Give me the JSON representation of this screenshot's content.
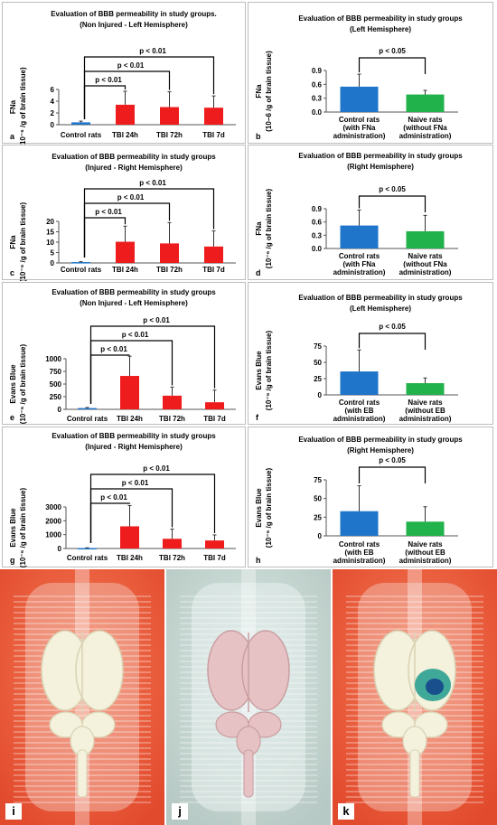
{
  "colors": {
    "red": "#ee1c1c",
    "blue": "#1f75c9",
    "green": "#22b24c",
    "border": "#bdbdbd"
  },
  "panels": [
    {
      "id": "a",
      "label": "a",
      "chart_data": {
        "type": "bar",
        "title": [
          "Evaluation of BBB permeability in study groups.",
          "(Non Injured - Left Hemisphere)"
        ],
        "ylabel": [
          "FNa",
          "(10⁻⁶ /g of brain tissue)"
        ],
        "ylim": [
          0,
          6
        ],
        "yticks": [
          "0",
          "2",
          "4",
          "6"
        ],
        "categories": [
          "Control rats",
          "TBI  24h",
          "TBI 72h",
          "TBI 7d"
        ],
        "values": [
          0.4,
          3.4,
          3.0,
          2.9
        ],
        "errors": [
          0.2,
          2.3,
          2.6,
          2.0
        ],
        "bar_colors": [
          "blue",
          "red",
          "red",
          "red"
        ],
        "annotations": [
          {
            "text": "p < 0.01",
            "to": 1
          },
          {
            "text": "p < 0.01",
            "to": 2
          },
          {
            "text": "p < 0.01",
            "to": 3
          }
        ]
      }
    },
    {
      "id": "b",
      "label": "b",
      "chart_data": {
        "type": "bar",
        "title": [
          "Evaluation of BBB permeability in study groups",
          "(Left Hemisphere)"
        ],
        "ylabel": [
          "FNa",
          "(10−6 /g of brain tissue)"
        ],
        "ylim": [
          0,
          0.9
        ],
        "yticks": [
          "0.0",
          "0.3",
          "0.6",
          "0.9"
        ],
        "categories": [
          [
            "Control rats",
            "(with  FNa",
            "administration)"
          ],
          [
            "Naive rats",
            "(without  FNa",
            "administration)"
          ]
        ],
        "values": [
          0.55,
          0.38
        ],
        "errors": [
          0.27,
          0.09
        ],
        "bar_colors": [
          "blue",
          "green"
        ],
        "annotations": [
          {
            "text": "p < 0.05"
          }
        ]
      }
    },
    {
      "id": "c",
      "label": "c",
      "chart_data": {
        "type": "bar",
        "title": [
          "Evaluation of BBB permeability in study groups",
          "(Injured - Right Hemisphere)"
        ],
        "ylabel": [
          "FNa",
          "(10⁻⁶ /g of brain tissue)"
        ],
        "ylim": [
          0,
          20
        ],
        "yticks": [
          "0",
          "5",
          "10",
          "15",
          "20"
        ],
        "categories": [
          "Control rats",
          "TBI  24h",
          "TBI 72h",
          "TBI 7d"
        ],
        "values": [
          0.4,
          10.2,
          9.4,
          7.9
        ],
        "errors": [
          0.2,
          7.5,
          10.0,
          7.5
        ],
        "bar_colors": [
          "blue",
          "red",
          "red",
          "red"
        ],
        "annotations": [
          {
            "text": "p < 0.01",
            "to": 1
          },
          {
            "text": "p < 0.01",
            "to": 2
          },
          {
            "text": "p < 0.01",
            "to": 3
          }
        ]
      }
    },
    {
      "id": "d",
      "label": "d",
      "chart_data": {
        "type": "bar",
        "title": [
          "Evaluation of BBB permeability in study groups",
          "(Right Hemisphere)"
        ],
        "ylabel": [
          "FNa",
          "(10⁻⁶ /g of brain tissue)"
        ],
        "ylim": [
          0,
          0.9
        ],
        "yticks": [
          "0.0",
          "0.3",
          "0.6",
          "0.9"
        ],
        "categories": [
          [
            "Control rats",
            "(with  FNa",
            "administration)"
          ],
          [
            "Naive rats",
            "(without  FNa",
            "administration)"
          ]
        ],
        "values": [
          0.52,
          0.39
        ],
        "errors": [
          0.35,
          0.36
        ],
        "bar_colors": [
          "blue",
          "green"
        ],
        "annotations": [
          {
            "text": "p < 0.05"
          }
        ]
      }
    },
    {
      "id": "e",
      "label": "e",
      "chart_data": {
        "type": "bar",
        "title": [
          "Evaluation of BBB permeability in study groups",
          "(Non Injured - Left Hemisphere)"
        ],
        "ylabel": [
          "Evans Blue",
          "(10⁻⁶ /g of brain tissue)"
        ],
        "ylim": [
          0,
          1000
        ],
        "yticks": [
          "0",
          "250",
          "500",
          "750",
          "1000"
        ],
        "categories": [
          "Control rats",
          "TBI  24h",
          "TBI 72h",
          "TBI 7d"
        ],
        "values": [
          25,
          660,
          270,
          140
        ],
        "errors": [
          12,
          520,
          170,
          240
        ],
        "bar_colors": [
          "blue",
          "red",
          "red",
          "red"
        ],
        "annotations": [
          {
            "text": "p < 0.01",
            "to": 1
          },
          {
            "text": "p < 0.01",
            "to": 2
          },
          {
            "text": "p < 0.01",
            "to": 3
          }
        ]
      }
    },
    {
      "id": "f",
      "label": "f",
      "chart_data": {
        "type": "bar",
        "title": [
          "Evaluation of BBB permeability in study groups",
          "(Left Hemisphere)"
        ],
        "ylabel": [
          "Evans Blue",
          "(10⁻⁶ /g of brain tissue)"
        ],
        "ylim": [
          0,
          75
        ],
        "yticks": [
          "0",
          "25",
          "50",
          "75"
        ],
        "categories": [
          [
            "Control rats",
            "(with EB",
            "administration)"
          ],
          [
            "Naive rats",
            "(without EB",
            "administration)"
          ]
        ],
        "values": [
          36,
          18
        ],
        "errors": [
          33,
          8
        ],
        "bar_colors": [
          "blue",
          "green"
        ],
        "annotations": [
          {
            "text": "p < 0.05"
          }
        ]
      }
    },
    {
      "id": "g",
      "label": "g",
      "chart_data": {
        "type": "bar",
        "title": [
          "Evaluation of BBB permeability in study groups",
          "(Injured - Right Hemisphere)"
        ],
        "ylabel": [
          "Evans Blue",
          "(10⁻⁶ /g of brain tissue)"
        ],
        "ylim": [
          0,
          3000
        ],
        "yticks": [
          "0",
          "1000",
          "2000",
          "3000"
        ],
        "categories": [
          "Control rats",
          "TBI  24h",
          "TBI 72h",
          "TBI 7d"
        ],
        "values": [
          30,
          1600,
          700,
          580
        ],
        "errors": [
          20,
          1500,
          700,
          400
        ],
        "bar_colors": [
          "blue",
          "red",
          "red",
          "red"
        ],
        "annotations": [
          {
            "text": "p < 0.01",
            "to": 1
          },
          {
            "text": "p < 0.01",
            "to": 2
          },
          {
            "text": "p < 0.01",
            "to": 3
          }
        ]
      }
    },
    {
      "id": "h",
      "label": "h",
      "chart_data": {
        "type": "bar",
        "title": [
          "Evaluation of BBB permeability in study groups",
          "(Right Hemisphere)"
        ],
        "ylabel": [
          "Evans Blue",
          "(10⁻⁶ /g of brain tissue)"
        ],
        "ylim": [
          0,
          75
        ],
        "yticks": [
          "0",
          "25",
          "50",
          "75"
        ],
        "categories": [
          [
            "Control rats",
            "(with EB",
            "administration)"
          ],
          [
            "Naive rats",
            "(without EB",
            "administration)"
          ]
        ],
        "values": [
          33,
          19
        ],
        "errors": [
          34,
          20
        ],
        "bar_colors": [
          "blue",
          "green"
        ],
        "annotations": [
          {
            "text": "p < 0.05"
          }
        ]
      }
    }
  ],
  "photos": [
    {
      "label": "i",
      "background": "#e24a2d",
      "brain": "white"
    },
    {
      "label": "j",
      "background": "#b7c9c4",
      "brain": "pink"
    },
    {
      "label": "k",
      "background": "#e24a2d",
      "brain": "white-with-blue-stain"
    }
  ]
}
